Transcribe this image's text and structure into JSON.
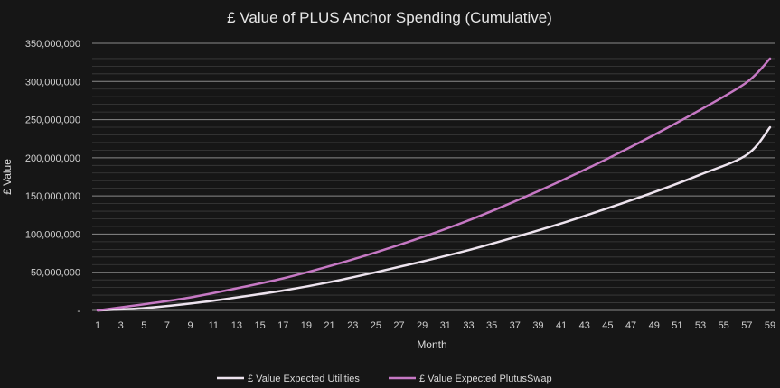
{
  "chart_data": {
    "type": "line",
    "title": "£ Value of PLUS Anchor Spending (Cumulative)",
    "xlabel": "Month",
    "ylabel": "£ Value",
    "ylim": [
      0,
      350000000
    ],
    "y_ticks": [
      {
        "value": 0,
        "label": "-"
      },
      {
        "value": 50000000,
        "label": "50,000,000"
      },
      {
        "value": 100000000,
        "label": "100,000,000"
      },
      {
        "value": 150000000,
        "label": "150,000,000"
      },
      {
        "value": 200000000,
        "label": "200,000,000"
      },
      {
        "value": 250000000,
        "label": "250,000,000"
      },
      {
        "value": 300000000,
        "label": "300,000,000"
      },
      {
        "value": 350000000,
        "label": "350,000,000"
      }
    ],
    "x_tick_labels": [
      "1",
      "3",
      "5",
      "7",
      "9",
      "11",
      "13",
      "15",
      "17",
      "19",
      "21",
      "23",
      "25",
      "27",
      "29",
      "31",
      "33",
      "35",
      "37",
      "39",
      "41",
      "43",
      "45",
      "47",
      "49",
      "51",
      "53",
      "55",
      "57",
      "59"
    ],
    "grid": true,
    "legend_position": "bottom",
    "series": [
      {
        "name": "£ Value Expected Utilities",
        "color": "#ede3ee",
        "x": [
          1,
          5,
          9,
          13,
          17,
          21,
          25,
          29,
          33,
          37,
          41,
          45,
          49,
          53,
          57,
          59
        ],
        "values": [
          0,
          3000000,
          9000000,
          17000000,
          26000000,
          37000000,
          50000000,
          64000000,
          79000000,
          96000000,
          114000000,
          134000000,
          155000000,
          178000000,
          204000000,
          240000000
        ]
      },
      {
        "name": "£ Value Expected PlutusSwap",
        "color": "#c678c4",
        "x": [
          1,
          5,
          9,
          13,
          17,
          21,
          25,
          29,
          33,
          37,
          41,
          45,
          49,
          53,
          57,
          59
        ],
        "values": [
          0,
          8000000,
          17000000,
          29000000,
          42000000,
          58000000,
          76000000,
          96000000,
          118000000,
          143000000,
          170000000,
          199000000,
          230000000,
          263000000,
          299000000,
          330000000
        ]
      }
    ]
  }
}
